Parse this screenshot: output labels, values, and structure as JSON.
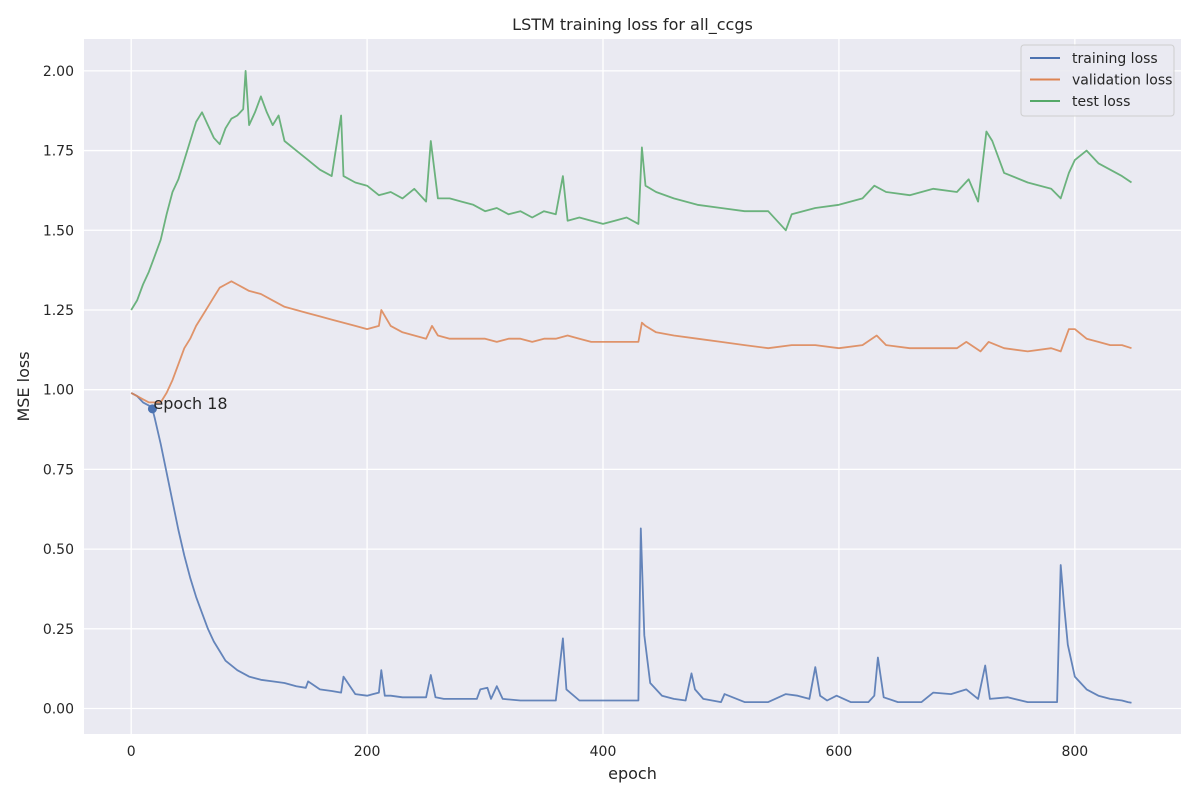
{
  "chart_data": {
    "type": "line",
    "title": "LSTM training loss for all_ccgs",
    "xlabel": "epoch",
    "ylabel": "MSE loss",
    "xlim": [
      -40,
      890
    ],
    "ylim": [
      -0.08,
      2.1
    ],
    "xticks": [
      0,
      200,
      400,
      600,
      800
    ],
    "yticks": [
      0.0,
      0.25,
      0.5,
      0.75,
      1.0,
      1.25,
      1.5,
      1.75,
      2.0
    ],
    "xtick_labels": [
      "0",
      "200",
      "400",
      "600",
      "800"
    ],
    "ytick_labels": [
      "0.00",
      "0.25",
      "0.50",
      "0.75",
      "1.00",
      "1.25",
      "1.50",
      "1.75",
      "2.00"
    ],
    "grid": true,
    "legend_position": "top-right",
    "series": [
      {
        "name": "training loss",
        "color": "#4c72b0",
        "x": [
          0,
          5,
          10,
          15,
          18,
          20,
          25,
          30,
          35,
          40,
          45,
          50,
          55,
          60,
          65,
          70,
          75,
          80,
          90,
          100,
          110,
          120,
          130,
          140,
          148,
          150,
          160,
          170,
          178,
          180,
          190,
          200,
          205,
          210,
          212,
          215,
          220,
          230,
          240,
          250,
          254,
          258,
          265,
          280,
          293,
          296,
          302,
          305,
          310,
          315,
          330,
          345,
          360,
          366,
          369,
          380,
          395,
          410,
          425,
          430,
          432,
          435,
          440,
          450,
          460,
          470,
          475,
          478,
          485,
          500,
          503,
          520,
          540,
          555,
          565,
          575,
          580,
          584,
          590,
          598,
          610,
          625,
          630,
          633,
          638,
          650,
          670,
          680,
          695,
          708,
          718,
          724,
          728,
          743,
          760,
          780,
          785,
          788,
          791,
          794,
          800,
          810,
          820,
          830,
          840,
          845,
          848
        ],
        "y": [
          0.99,
          0.98,
          0.96,
          0.95,
          0.94,
          0.91,
          0.83,
          0.74,
          0.65,
          0.56,
          0.48,
          0.41,
          0.35,
          0.3,
          0.25,
          0.21,
          0.18,
          0.15,
          0.12,
          0.1,
          0.09,
          0.085,
          0.08,
          0.07,
          0.065,
          0.085,
          0.06,
          0.055,
          0.05,
          0.1,
          0.045,
          0.04,
          0.045,
          0.05,
          0.12,
          0.04,
          0.04,
          0.035,
          0.035,
          0.035,
          0.105,
          0.035,
          0.03,
          0.03,
          0.03,
          0.06,
          0.065,
          0.03,
          0.07,
          0.03,
          0.025,
          0.025,
          0.025,
          0.22,
          0.06,
          0.025,
          0.025,
          0.025,
          0.025,
          0.025,
          0.565,
          0.23,
          0.08,
          0.04,
          0.03,
          0.025,
          0.11,
          0.06,
          0.03,
          0.02,
          0.045,
          0.02,
          0.02,
          0.045,
          0.04,
          0.03,
          0.13,
          0.04,
          0.025,
          0.04,
          0.02,
          0.02,
          0.04,
          0.16,
          0.035,
          0.02,
          0.02,
          0.05,
          0.045,
          0.06,
          0.03,
          0.135,
          0.03,
          0.035,
          0.02,
          0.02,
          0.02,
          0.45,
          0.32,
          0.2,
          0.1,
          0.06,
          0.04,
          0.03,
          0.025,
          0.02,
          0.018
        ]
      },
      {
        "name": "validation loss",
        "color": "#dd8452",
        "x": [
          0,
          5,
          10,
          15,
          20,
          25,
          30,
          35,
          40,
          45,
          50,
          55,
          60,
          65,
          70,
          75,
          80,
          85,
          90,
          95,
          100,
          110,
          120,
          130,
          140,
          150,
          160,
          170,
          180,
          190,
          200,
          210,
          212,
          220,
          230,
          240,
          250,
          255,
          260,
          270,
          280,
          290,
          300,
          310,
          320,
          330,
          340,
          350,
          360,
          370,
          380,
          390,
          400,
          410,
          420,
          430,
          433,
          436,
          445,
          460,
          480,
          500,
          520,
          540,
          560,
          580,
          600,
          620,
          632,
          640,
          660,
          680,
          700,
          708,
          720,
          727,
          740,
          760,
          780,
          788,
          795,
          800,
          810,
          820,
          830,
          840,
          848
        ],
        "y": [
          0.99,
          0.98,
          0.97,
          0.96,
          0.96,
          0.96,
          0.99,
          1.03,
          1.08,
          1.13,
          1.16,
          1.2,
          1.23,
          1.26,
          1.29,
          1.32,
          1.33,
          1.34,
          1.33,
          1.32,
          1.31,
          1.3,
          1.28,
          1.26,
          1.25,
          1.24,
          1.23,
          1.22,
          1.21,
          1.2,
          1.19,
          1.2,
          1.25,
          1.2,
          1.18,
          1.17,
          1.16,
          1.2,
          1.17,
          1.16,
          1.16,
          1.16,
          1.16,
          1.15,
          1.16,
          1.16,
          1.15,
          1.16,
          1.16,
          1.17,
          1.16,
          1.15,
          1.15,
          1.15,
          1.15,
          1.15,
          1.21,
          1.2,
          1.18,
          1.17,
          1.16,
          1.15,
          1.14,
          1.13,
          1.14,
          1.14,
          1.13,
          1.14,
          1.17,
          1.14,
          1.13,
          1.13,
          1.13,
          1.15,
          1.12,
          1.15,
          1.13,
          1.12,
          1.13,
          1.12,
          1.19,
          1.19,
          1.16,
          1.15,
          1.14,
          1.14,
          1.13
        ]
      },
      {
        "name": "test loss",
        "color": "#55a868",
        "x": [
          0,
          5,
          10,
          15,
          20,
          25,
          30,
          35,
          40,
          45,
          50,
          55,
          60,
          65,
          70,
          75,
          80,
          85,
          90,
          95,
          97,
          100,
          105,
          110,
          115,
          120,
          125,
          130,
          140,
          150,
          160,
          170,
          178,
          180,
          190,
          200,
          210,
          220,
          230,
          240,
          250,
          254,
          260,
          270,
          280,
          290,
          300,
          310,
          320,
          330,
          340,
          350,
          360,
          366,
          370,
          380,
          390,
          400,
          410,
          420,
          430,
          433,
          436,
          445,
          460,
          480,
          500,
          520,
          540,
          555,
          560,
          580,
          600,
          620,
          630,
          640,
          660,
          680,
          700,
          710,
          718,
          725,
          730,
          740,
          760,
          780,
          788,
          795,
          800,
          810,
          820,
          830,
          840,
          848
        ],
        "y": [
          1.25,
          1.28,
          1.33,
          1.37,
          1.42,
          1.47,
          1.55,
          1.62,
          1.66,
          1.72,
          1.78,
          1.84,
          1.87,
          1.83,
          1.79,
          1.77,
          1.82,
          1.85,
          1.86,
          1.88,
          2.0,
          1.83,
          1.87,
          1.92,
          1.87,
          1.83,
          1.86,
          1.78,
          1.75,
          1.72,
          1.69,
          1.67,
          1.86,
          1.67,
          1.65,
          1.64,
          1.61,
          1.62,
          1.6,
          1.63,
          1.59,
          1.78,
          1.6,
          1.6,
          1.59,
          1.58,
          1.56,
          1.57,
          1.55,
          1.56,
          1.54,
          1.56,
          1.55,
          1.67,
          1.53,
          1.54,
          1.53,
          1.52,
          1.53,
          1.54,
          1.52,
          1.76,
          1.64,
          1.62,
          1.6,
          1.58,
          1.57,
          1.56,
          1.56,
          1.5,
          1.55,
          1.57,
          1.58,
          1.6,
          1.64,
          1.62,
          1.61,
          1.63,
          1.62,
          1.66,
          1.59,
          1.81,
          1.78,
          1.68,
          1.65,
          1.63,
          1.6,
          1.68,
          1.72,
          1.75,
          1.71,
          1.69,
          1.67,
          1.65
        ]
      }
    ],
    "annotations": [
      {
        "x": 18,
        "y": 0.94,
        "text": "epoch 18",
        "color": "#4c72b0"
      }
    ]
  }
}
